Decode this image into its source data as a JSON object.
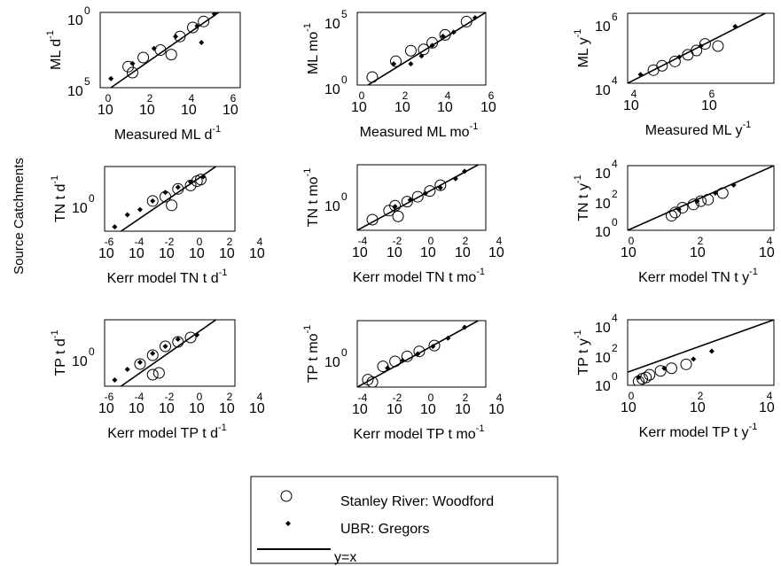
{
  "figure": {
    "row_title": "Source Catchments",
    "legend": [
      {
        "label": "Stanley River: Woodford",
        "symbol": "circle"
      },
      {
        "label": "UBR: Gregors",
        "symbol": "point"
      },
      {
        "label": "y=x",
        "symbol": "line"
      }
    ]
  },
  "chart_data": [
    {
      "type": "scatter",
      "scale": "log",
      "xlabel": "Measured ML d",
      "xlabel_sup": "-1",
      "ylabel": "ML d",
      "ylabel_sup": "-1",
      "x_ticks": [
        "0",
        "2",
        "4",
        "6"
      ],
      "y_ticks": [
        "0",
        "5"
      ],
      "series": [
        {
          "name": "Stanley River: Woodford",
          "values": [
            [
              0.8,
              1.4
            ],
            [
              1.5,
              2.0
            ],
            [
              2.3,
              2.5
            ],
            [
              3.2,
              3.4
            ],
            [
              3.8,
              4.0
            ],
            [
              4.3,
              4.4
            ],
            [
              1.0,
              1.0
            ],
            [
              2.8,
              2.2
            ]
          ]
        },
        {
          "name": "UBR: Gregors",
          "values": [
            [
              0.0,
              0.6
            ],
            [
              1.0,
              1.6
            ],
            [
              2.0,
              2.6
            ],
            [
              3.0,
              3.4
            ],
            [
              4.0,
              4.1
            ],
            [
              4.2,
              3.0
            ],
            [
              4.8,
              4.9
            ]
          ]
        }
      ]
    },
    {
      "type": "scatter",
      "scale": "log",
      "xlabel": "Measured ML mo",
      "xlabel_sup": "-1",
      "ylabel": "ML  mo",
      "ylabel_sup": "-1",
      "x_ticks": [
        "0",
        "2",
        "4",
        "6"
      ],
      "y_ticks": [
        "0",
        "5"
      ],
      "series": [
        {
          "name": "Stanley River: Woodford",
          "values": [
            [
              0.2,
              0.6
            ],
            [
              1.3,
              1.8
            ],
            [
              2.0,
              2.6
            ],
            [
              2.6,
              2.7
            ],
            [
              3.0,
              3.2
            ],
            [
              3.6,
              3.8
            ],
            [
              4.6,
              4.8
            ]
          ]
        },
        {
          "name": "UBR: Gregors",
          "values": [
            [
              1.2,
              1.6
            ],
            [
              2.0,
              1.6
            ],
            [
              2.5,
              2.2
            ],
            [
              3.0,
              3.0
            ],
            [
              3.5,
              3.7
            ],
            [
              4.0,
              4.0
            ],
            [
              5.0,
              5.1
            ]
          ]
        }
      ]
    },
    {
      "type": "scatter",
      "scale": "log",
      "xlabel": "Measured ML y",
      "xlabel_sup": "-1",
      "ylabel": "ML  y",
      "ylabel_sup": "-1",
      "x_ticks": [
        "4",
        "6"
      ],
      "y_ticks": [
        "4",
        "6"
      ],
      "series": [
        {
          "name": "Stanley River: Woodford",
          "values": [
            [
              4.4,
              4.4
            ],
            [
              4.6,
              4.6
            ],
            [
              4.9,
              4.8
            ],
            [
              5.2,
              5.1
            ],
            [
              5.4,
              5.3
            ],
            [
              5.6,
              5.6
            ],
            [
              5.9,
              5.5
            ]
          ]
        },
        {
          "name": "UBR: Gregors",
          "values": [
            [
              4.1,
              4.2
            ],
            [
              5.0,
              5.0
            ],
            [
              5.5,
              5.5
            ],
            [
              6.3,
              6.4
            ]
          ]
        }
      ]
    },
    {
      "type": "scatter",
      "scale": "log",
      "xlabel": "Kerr model TN t d",
      "xlabel_sup": "-1",
      "ylabel": "TN t d",
      "ylabel_sup": "-1",
      "x_ticks": [
        "-6",
        "-4",
        "-2",
        "0",
        "2",
        "4"
      ],
      "y_ticks": [
        "0"
      ],
      "series": [
        {
          "name": "Stanley River: Woodford",
          "values": [
            [
              -3.0,
              -2.0
            ],
            [
              -2.0,
              -1.5
            ],
            [
              -1.0,
              -0.6
            ],
            [
              0.0,
              -0.2
            ],
            [
              0.5,
              0.3
            ],
            [
              0.8,
              0.5
            ],
            [
              -1.5,
              -2.5
            ]
          ]
        },
        {
          "name": "UBR: Gregors",
          "values": [
            [
              -6.0,
              -5.0
            ],
            [
              -5.0,
              -3.6
            ],
            [
              -4.0,
              -3.0
            ],
            [
              -3.0,
              -2.0
            ],
            [
              -2.0,
              -1.0
            ],
            [
              -1.0,
              -0.4
            ],
            [
              0.0,
              0.2
            ],
            [
              1.0,
              0.8
            ]
          ]
        }
      ]
    },
    {
      "type": "scatter",
      "scale": "log",
      "xlabel": "Kerr model TN t mo",
      "xlabel_sup": "-1",
      "ylabel": "TN t mo",
      "ylabel_sup": "-1",
      "x_ticks": [
        "-4",
        "-2",
        "0",
        "2",
        "4"
      ],
      "y_ticks": [
        "0"
      ],
      "series": [
        {
          "name": "Stanley River: Woodford",
          "values": [
            [
              -3.5,
              -3.2
            ],
            [
              -2.4,
              -2.1
            ],
            [
              -2.0,
              -1.5
            ],
            [
              -1.2,
              -1.0
            ],
            [
              -0.5,
              -0.4
            ],
            [
              0.3,
              0.3
            ],
            [
              1.0,
              1.0
            ],
            [
              -1.8,
              -2.8
            ]
          ]
        },
        {
          "name": "UBR: Gregors",
          "values": [
            [
              -2.0,
              -1.6
            ],
            [
              -1.0,
              -0.8
            ],
            [
              0.0,
              0.0
            ],
            [
              1.0,
              0.7
            ],
            [
              2.0,
              1.8
            ],
            [
              2.6,
              2.7
            ]
          ]
        }
      ]
    },
    {
      "type": "scatter",
      "scale": "log",
      "xlabel": "Kerr model TN t y",
      "xlabel_sup": "-1",
      "ylabel": "TN t y",
      "ylabel_sup": "-1",
      "x_ticks": [
        "0",
        "2",
        "4"
      ],
      "y_ticks": [
        "0",
        "2",
        "4"
      ],
      "series": [
        {
          "name": "Stanley River: Woodford",
          "values": [
            [
              1.2,
              0.9
            ],
            [
              1.3,
              1.1
            ],
            [
              1.5,
              1.4
            ],
            [
              1.8,
              1.6
            ],
            [
              2.0,
              1.8
            ],
            [
              2.2,
              1.9
            ],
            [
              2.6,
              2.3
            ]
          ]
        },
        {
          "name": "UBR: Gregors",
          "values": [
            [
              1.4,
              1.3
            ],
            [
              1.9,
              1.8
            ],
            [
              2.4,
              2.3
            ],
            [
              2.9,
              2.8
            ]
          ]
        }
      ]
    },
    {
      "type": "scatter",
      "scale": "log",
      "xlabel": "Kerr model TP t d",
      "xlabel_sup": "-1",
      "ylabel": "TP t d",
      "ylabel_sup": "-1",
      "x_ticks": [
        "-6",
        "-4",
        "-2",
        "0",
        "2",
        "4"
      ],
      "y_ticks": [
        "0"
      ],
      "series": [
        {
          "name": "Stanley River: Woodford",
          "values": [
            [
              -4.0,
              -3.0
            ],
            [
              -3.0,
              -2.0
            ],
            [
              -2.0,
              -1.0
            ],
            [
              -1.0,
              -0.5
            ],
            [
              0.0,
              0.0
            ],
            [
              -3.0,
              -4.2
            ],
            [
              -2.5,
              -4.0
            ]
          ]
        },
        {
          "name": "UBR: Gregors",
          "values": [
            [
              -6.0,
              -4.8
            ],
            [
              -5.0,
              -3.6
            ],
            [
              -4.0,
              -2.8
            ],
            [
              -3.0,
              -1.8
            ],
            [
              -2.0,
              -1.0
            ],
            [
              -1.0,
              -0.2
            ],
            [
              0.5,
              0.3
            ]
          ]
        }
      ]
    },
    {
      "type": "scatter",
      "scale": "log",
      "xlabel": "Kerr model TP t mo",
      "xlabel_sup": "-1",
      "ylabel": "TP t mo",
      "ylabel_sup": "-1",
      "x_ticks": [
        "-4",
        "-2",
        "0",
        "2",
        "4"
      ],
      "y_ticks": [
        "0"
      ],
      "series": [
        {
          "name": "Stanley River: Woodford",
          "values": [
            [
              -3.8,
              -3.6
            ],
            [
              -2.8,
              -2.0
            ],
            [
              -2.0,
              -1.4
            ],
            [
              -1.2,
              -0.8
            ],
            [
              -0.4,
              -0.2
            ],
            [
              0.6,
              0.5
            ],
            [
              -3.5,
              -3.9
            ]
          ]
        },
        {
          "name": "UBR: Gregors",
          "values": [
            [
              -2.5,
              -2.2
            ],
            [
              -1.5,
              -1.3
            ],
            [
              -0.5,
              -0.5
            ],
            [
              0.5,
              0.4
            ],
            [
              1.5,
              1.4
            ],
            [
              2.6,
              2.7
            ]
          ]
        }
      ]
    },
    {
      "type": "scatter",
      "scale": "log",
      "xlabel": "Kerr model TP t y",
      "xlabel_sup": "-1",
      "ylabel": "TP t y",
      "ylabel_sup": "-1",
      "x_ticks": [
        "0",
        "2",
        "4"
      ],
      "y_ticks": [
        "0",
        "2",
        "4"
      ],
      "series": [
        {
          "name": "Stanley River: Woodford",
          "values": [
            [
              0.3,
              -0.7
            ],
            [
              0.4,
              -0.5
            ],
            [
              0.6,
              -0.2
            ],
            [
              0.9,
              0.1
            ],
            [
              1.2,
              0.3
            ],
            [
              1.6,
              0.6
            ],
            [
              0.5,
              -0.4
            ]
          ]
        },
        {
          "name": "UBR: Gregors",
          "values": [
            [
              0.3,
              -0.4
            ],
            [
              1.0,
              0.3
            ],
            [
              1.8,
              1.0
            ],
            [
              2.3,
              1.6
            ]
          ]
        }
      ]
    }
  ]
}
